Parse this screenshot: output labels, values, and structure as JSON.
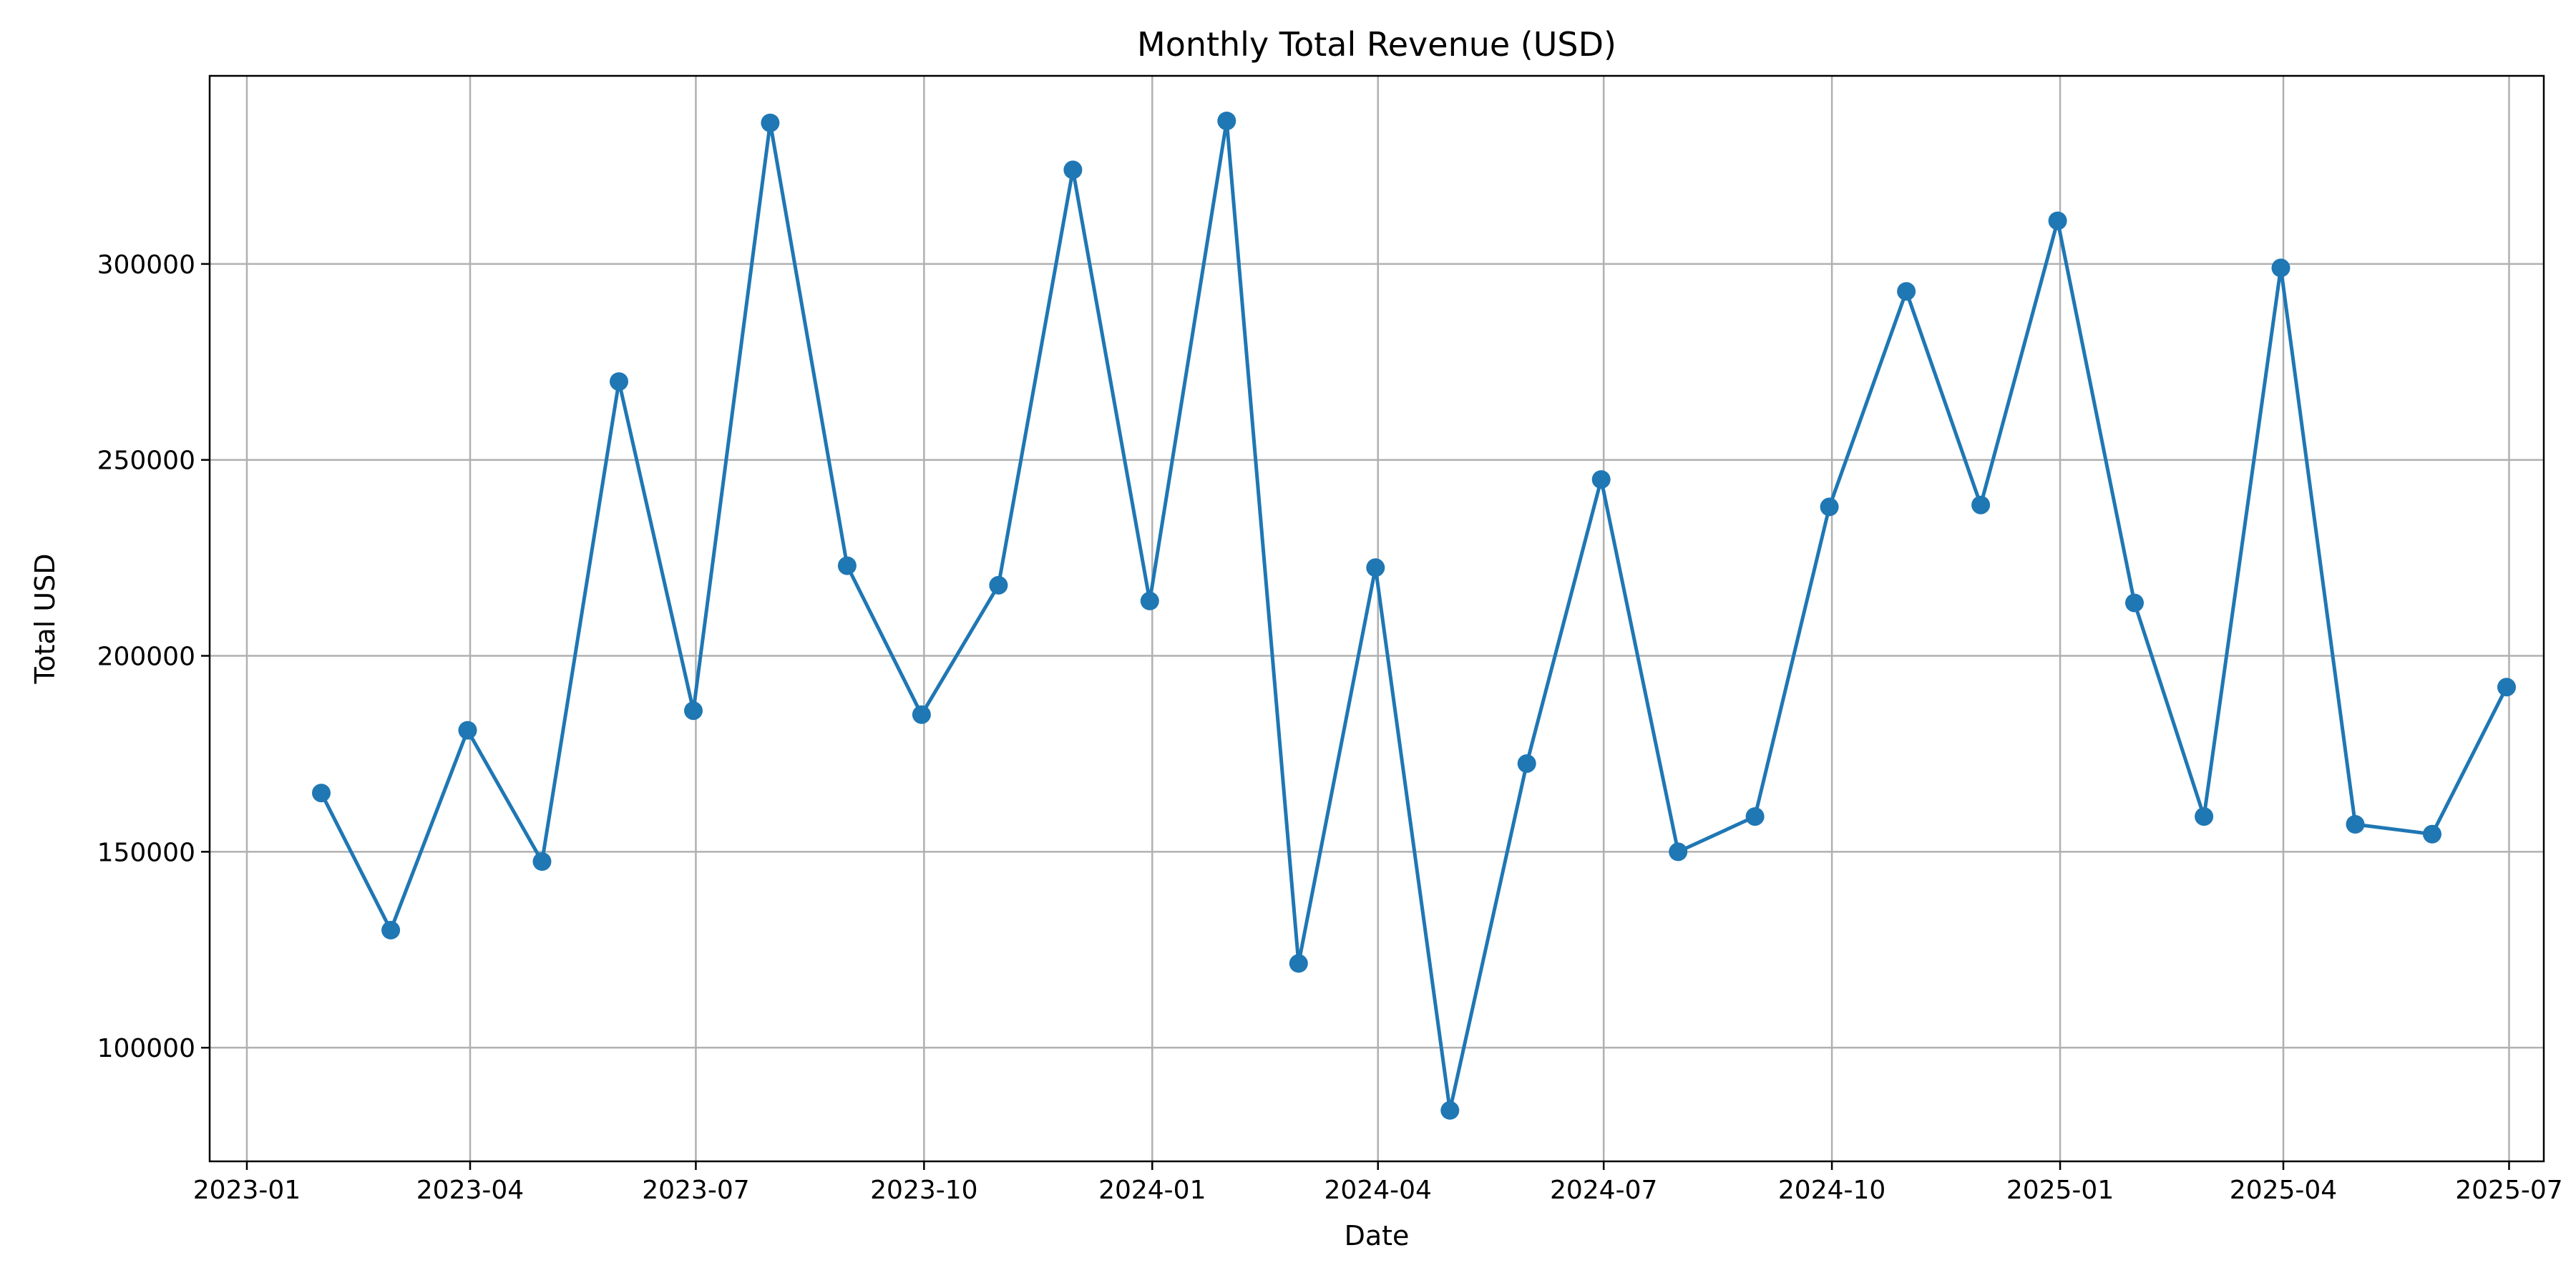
{
  "chart_data": {
    "type": "line",
    "title": "Monthly Total Revenue (USD)",
    "xlabel": "Date",
    "ylabel": "Total USD",
    "grid": true,
    "x_ticks": [
      "2023-01",
      "2023-04",
      "2023-07",
      "2023-10",
      "2024-01",
      "2024-04",
      "2024-07",
      "2024-10",
      "2025-01",
      "2025-04",
      "2025-07"
    ],
    "y_ticks": [
      "100000",
      "150000",
      "200000",
      "250000",
      "300000"
    ],
    "xlim": [
      "2022-12-17",
      "2025-07-15"
    ],
    "ylim": [
      71000,
      348000
    ],
    "series": [
      {
        "color": "#1f77b4",
        "marker": "circle",
        "x": [
          "2023-01-31",
          "2023-02-28",
          "2023-03-31",
          "2023-04-30",
          "2023-05-31",
          "2023-06-30",
          "2023-07-31",
          "2023-08-31",
          "2023-09-30",
          "2023-10-31",
          "2023-11-30",
          "2023-12-31",
          "2024-01-31",
          "2024-02-29",
          "2024-03-31",
          "2024-04-30",
          "2024-05-31",
          "2024-06-30",
          "2024-07-31",
          "2024-08-31",
          "2024-09-30",
          "2024-10-31",
          "2024-11-30",
          "2024-12-31",
          "2025-01-31",
          "2025-02-28",
          "2025-03-31",
          "2025-04-30",
          "2025-05-31",
          "2025-06-30"
        ],
        "values": [
          165000,
          130000,
          181000,
          147500,
          270000,
          186000,
          336000,
          223000,
          185000,
          218000,
          324000,
          214000,
          336500,
          121500,
          222500,
          84000,
          172500,
          245000,
          150000,
          159000,
          238000,
          293000,
          238500,
          311000,
          213500,
          159000,
          299000,
          157000,
          154500,
          192000
        ]
      }
    ]
  }
}
